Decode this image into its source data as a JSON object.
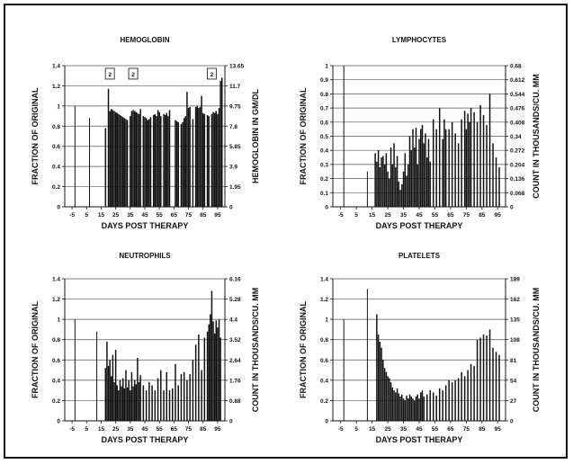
{
  "chart_data": [
    {
      "id": "hemoglobin",
      "type": "bar",
      "title": "HEMOGLOBIN",
      "xlabel": "DAYS POST THERAPY",
      "ylabel": "FRACTION OF ORIGINAL",
      "ylabel_right": "HEMOGLOBIN IN GM/DL",
      "xlim": [
        -10,
        100
      ],
      "ylim": [
        0,
        1.4
      ],
      "grid": true,
      "x_ticks": [
        "-5",
        "5",
        "15",
        "25",
        "35",
        "45",
        "55",
        "65",
        "75",
        "85",
        "95"
      ],
      "x_tick_values": [
        -5,
        5,
        15,
        25,
        35,
        45,
        55,
        65,
        75,
        85,
        95
      ],
      "y_ticks": [
        "0",
        "0.2",
        "0.4",
        "0.6",
        "0.8",
        "1",
        "1.2",
        "1.4"
      ],
      "y_tick_values": [
        0,
        0.2,
        0.4,
        0.6,
        0.8,
        1,
        1.2,
        1.4
      ],
      "y2_ticks": [
        "0",
        "1.95",
        "3.9",
        "5.85",
        "7.8",
        "9.75",
        "11.7",
        "13.65"
      ],
      "annotations": [
        {
          "text": "2",
          "x": 21,
          "y": 1.32
        },
        {
          "text": "2",
          "x": 37,
          "y": 1.32
        },
        {
          "text": "2",
          "x": 91,
          "y": 1.32
        }
      ],
      "x": [
        -3,
        7,
        18,
        20,
        21,
        22,
        23,
        24,
        25,
        26,
        27,
        28,
        29,
        30,
        31,
        32,
        33,
        35,
        36,
        37,
        38,
        39,
        40,
        41,
        42,
        44,
        45,
        46,
        47,
        48,
        49,
        51,
        52,
        53,
        54,
        55,
        56,
        58,
        59,
        60,
        61,
        62,
        66,
        67,
        68,
        70,
        71,
        72,
        73,
        74,
        75,
        76,
        78,
        80,
        81,
        82,
        83,
        84,
        85,
        86,
        88,
        89,
        91,
        92,
        93,
        94,
        95,
        96,
        97,
        98
      ],
      "values": [
        1.0,
        0.88,
        0.78,
        1.17,
        0.95,
        0.97,
        0.96,
        0.95,
        0.94,
        0.93,
        0.92,
        0.91,
        0.9,
        0.89,
        0.88,
        0.87,
        0.86,
        0.9,
        0.95,
        0.96,
        0.95,
        0.94,
        0.93,
        0.92,
        0.97,
        0.9,
        0.89,
        0.88,
        0.86,
        0.87,
        0.89,
        0.91,
        0.92,
        0.9,
        0.96,
        0.94,
        0.9,
        0.92,
        0.91,
        0.93,
        0.9,
        0.96,
        0.86,
        0.85,
        0.84,
        0.82,
        0.84,
        0.88,
        0.9,
        1.14,
        0.98,
        0.99,
        0.87,
        0.99,
        1.0,
        0.98,
        0.99,
        1.1,
        0.93,
        0.92,
        0.91,
        0.9,
        0.92,
        0.94,
        0.93,
        0.95,
        0.92,
        0.98,
        1.25,
        1.28
      ]
    },
    {
      "id": "lymphocytes",
      "type": "bar",
      "title": "LYMPHOCYTES",
      "xlabel": "DAYS POST THERAPY",
      "ylabel": "FRACTION OF ORIGINAL",
      "ylabel_right": "COUNT IN THOUSANDS/CU. MM",
      "xlim": [
        -10,
        100
      ],
      "ylim": [
        0,
        1
      ],
      "grid": true,
      "x_ticks": [
        "-5",
        "5",
        "15",
        "25",
        "35",
        "45",
        "55",
        "65",
        "75",
        "85",
        "95"
      ],
      "x_tick_values": [
        -5,
        5,
        15,
        25,
        35,
        45,
        55,
        65,
        75,
        85,
        95
      ],
      "y_ticks": [
        "0",
        "0.1",
        "0.2",
        "0.3",
        "0.4",
        "0.5",
        "0.6",
        "0.7",
        "0.8",
        "0.9",
        "1"
      ],
      "y_tick_values": [
        0,
        0.1,
        0.2,
        0.3,
        0.4,
        0.5,
        0.6,
        0.7,
        0.8,
        0.9,
        1
      ],
      "y2_ticks": [
        "0",
        "0.068",
        "0.136",
        "0.204",
        "0.272",
        "0.34",
        "0.408",
        "0.476",
        "0.544",
        "0.612",
        "0.68"
      ],
      "x": [
        -3,
        12,
        17,
        18,
        19,
        20,
        21,
        22,
        23,
        24,
        25,
        26,
        27,
        28,
        29,
        30,
        31,
        32,
        33,
        34,
        35,
        36,
        37,
        38,
        39,
        40,
        41,
        42,
        43,
        44,
        45,
        46,
        47,
        48,
        49,
        50,
        51,
        52,
        54,
        56,
        58,
        60,
        61,
        62,
        64,
        66,
        68,
        70,
        72,
        74,
        75,
        76,
        77,
        78,
        80,
        82,
        84,
        86,
        88,
        90,
        92,
        94,
        96
      ],
      "values": [
        1.0,
        0.25,
        0.38,
        0.32,
        0.4,
        0.28,
        0.35,
        0.36,
        0.3,
        0.38,
        0.25,
        0.2,
        0.42,
        0.3,
        0.45,
        0.28,
        0.36,
        0.18,
        0.12,
        0.16,
        0.25,
        0.38,
        0.22,
        0.3,
        0.5,
        0.4,
        0.55,
        0.42,
        0.56,
        0.3,
        0.48,
        0.55,
        0.58,
        0.45,
        0.52,
        0.35,
        0.48,
        0.32,
        0.62,
        0.55,
        0.7,
        0.48,
        0.62,
        0.55,
        0.55,
        0.6,
        0.52,
        0.45,
        0.62,
        0.68,
        0.55,
        0.66,
        0.6,
        0.7,
        0.67,
        0.6,
        0.72,
        0.65,
        0.58,
        0.8,
        0.45,
        0.35,
        0.28
      ]
    },
    {
      "id": "neutrophils",
      "type": "bar",
      "title": "NEUTROPHILS",
      "xlabel": "DAYS POST THERAPY",
      "ylabel": "FRACTION OF ORIGINAL",
      "ylabel_right": "COUNT IN THOUSANDS/CU. MM",
      "xlim": [
        -10,
        100
      ],
      "ylim": [
        0,
        1.4
      ],
      "grid": true,
      "x_ticks": [
        "-5",
        "5",
        "15",
        "25",
        "35",
        "45",
        "55",
        "65",
        "75",
        "85",
        "95"
      ],
      "x_tick_values": [
        -5,
        5,
        15,
        25,
        35,
        45,
        55,
        65,
        75,
        85,
        95
      ],
      "y_ticks": [
        "0",
        "0.2",
        "0.4",
        "0.6",
        "0.8",
        "1",
        "1.2",
        "1.4"
      ],
      "y_tick_values": [
        0,
        0.2,
        0.4,
        0.6,
        0.8,
        1,
        1.2,
        1.4
      ],
      "y2_ticks": [
        "0",
        "0.88",
        "1.76",
        "2.64",
        "3.52",
        "4.4",
        "5.28",
        "6.16"
      ],
      "x": [
        -3,
        12,
        18,
        19,
        20,
        21,
        22,
        23,
        24,
        25,
        26,
        27,
        28,
        29,
        30,
        31,
        32,
        33,
        34,
        35,
        36,
        37,
        38,
        39,
        40,
        41,
        42,
        44,
        46,
        48,
        50,
        52,
        54,
        56,
        58,
        60,
        62,
        64,
        66,
        68,
        70,
        72,
        74,
        76,
        78,
        80,
        82,
        84,
        86,
        88,
        89,
        90,
        91,
        92,
        93,
        94,
        95,
        96,
        97
      ],
      "values": [
        1.0,
        0.88,
        0.52,
        0.78,
        0.54,
        0.6,
        0.44,
        0.65,
        0.38,
        0.7,
        0.35,
        0.3,
        0.4,
        0.34,
        0.42,
        0.32,
        0.5,
        0.33,
        0.4,
        0.3,
        0.48,
        0.34,
        0.4,
        0.36,
        0.62,
        0.38,
        0.45,
        0.35,
        0.3,
        0.38,
        0.35,
        0.3,
        0.42,
        0.5,
        0.3,
        0.48,
        0.3,
        0.32,
        0.56,
        0.35,
        0.46,
        0.48,
        0.4,
        0.46,
        0.6,
        0.75,
        0.85,
        0.5,
        0.82,
        0.88,
        0.95,
        1.05,
        1.28,
        0.98,
        0.86,
        0.99,
        0.92,
        1.0,
        0.82
      ]
    },
    {
      "id": "platelets",
      "type": "bar",
      "title": "PLATELETS",
      "xlabel": "DAYS POST THERAPY",
      "ylabel": "FRACTION OF ORIGINAL",
      "ylabel_right": "COUNT IN THOUSANDS/CU. MM",
      "xlim": [
        -10,
        100
      ],
      "ylim": [
        0,
        1.4
      ],
      "grid": true,
      "x_ticks": [
        "-5",
        "5",
        "15",
        "25",
        "35",
        "45",
        "55",
        "65",
        "75",
        "85",
        "95"
      ],
      "x_tick_values": [
        -5,
        5,
        15,
        25,
        35,
        45,
        55,
        65,
        75,
        85,
        95
      ],
      "y_ticks": [
        "0",
        "0.2",
        "0.4",
        "0.6",
        "0.8",
        "1",
        "1.2",
        "1.4"
      ],
      "y_tick_values": [
        0,
        0.2,
        0.4,
        0.6,
        0.8,
        1,
        1.2,
        1.4
      ],
      "y2_ticks": [
        "0",
        "27",
        "54",
        "81",
        "108",
        "135",
        "162",
        "189"
      ],
      "x": [
        -3,
        12,
        18,
        19,
        20,
        21,
        22,
        23,
        24,
        25,
        26,
        27,
        28,
        29,
        30,
        31,
        32,
        33,
        34,
        35,
        36,
        37,
        38,
        39,
        40,
        41,
        42,
        43,
        44,
        45,
        46,
        47,
        48,
        50,
        52,
        54,
        56,
        58,
        60,
        62,
        64,
        66,
        68,
        70,
        72,
        74,
        76,
        78,
        80,
        82,
        84,
        86,
        88,
        90,
        92,
        94,
        96
      ],
      "values": [
        1.0,
        1.3,
        1.05,
        0.85,
        0.78,
        0.72,
        0.6,
        0.52,
        0.48,
        0.44,
        0.42,
        0.38,
        0.33,
        0.3,
        0.28,
        0.32,
        0.27,
        0.24,
        0.26,
        0.22,
        0.2,
        0.25,
        0.22,
        0.26,
        0.24,
        0.22,
        0.2,
        0.24,
        0.26,
        0.22,
        0.28,
        0.3,
        0.24,
        0.26,
        0.3,
        0.28,
        0.25,
        0.32,
        0.3,
        0.35,
        0.4,
        0.38,
        0.4,
        0.42,
        0.48,
        0.44,
        0.5,
        0.56,
        0.54,
        0.8,
        0.82,
        0.85,
        0.84,
        0.9,
        0.72,
        0.68,
        0.65
      ]
    }
  ]
}
